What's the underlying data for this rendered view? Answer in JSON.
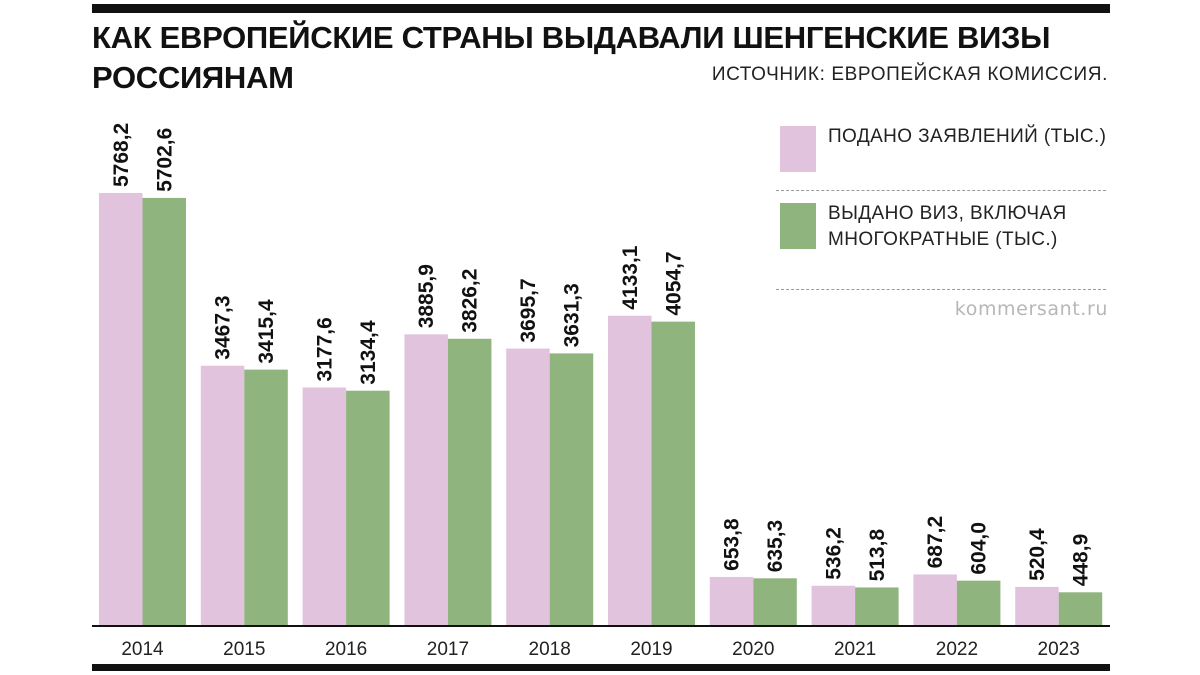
{
  "title": "КАК ЕВРОПЕЙСКИЕ СТРАНЫ ВЫДАВАЛИ ШЕНГЕНСКИЕ ВИЗЫ РОССИЯНАМ",
  "source": "ИСТОЧНИК: ЕВРОПЕЙСКАЯ КОМИССИЯ.",
  "watermark": "kommersant.ru",
  "legend": [
    {
      "label": "ПОДАНО ЗАЯВЛЕНИЙ (ТЫС.)",
      "color": "#e2c3de"
    },
    {
      "label": "ВЫДАНО ВИЗ, ВКЛЮЧАЯ МНОГОКРАТНЫЕ (ТЫС.)",
      "color": "#8fb47e"
    }
  ],
  "chart_data": {
    "type": "bar",
    "categories": [
      "2014",
      "2015",
      "2016",
      "2017",
      "2018",
      "2019",
      "2020",
      "2021",
      "2022",
      "2023"
    ],
    "series": [
      {
        "name": "ПОДАНО ЗАЯВЛЕНИЙ (ТЫС.)",
        "color": "#e2c3de",
        "values": [
          5768.2,
          3467.3,
          3177.6,
          3885.9,
          3695.7,
          4133.1,
          653.8,
          536.2,
          687.2,
          520.4
        ],
        "labels": [
          "5768,2",
          "3467,3",
          "3177,6",
          "3885,9",
          "3695,7",
          "4133,1",
          "653,8",
          "536,2",
          "687,2",
          "520,4"
        ]
      },
      {
        "name": "ВЫДАНО ВИЗ, ВКЛЮЧАЯ МНОГОКРАТНЫЕ (ТЫС.)",
        "color": "#8fb47e",
        "values": [
          5702.6,
          3415.4,
          3134.4,
          3826.2,
          3631.3,
          4054.7,
          635.3,
          513.8,
          604.0,
          448.9
        ],
        "labels": [
          "5702,6",
          "3415,4",
          "3134,4",
          "3826,2",
          "3631,3",
          "4054,7",
          "635,3",
          "513,8",
          "604,0",
          "448,9"
        ]
      }
    ],
    "ylim": [
      0,
      5768.2
    ],
    "grid": false,
    "legend_position": "top-right"
  }
}
